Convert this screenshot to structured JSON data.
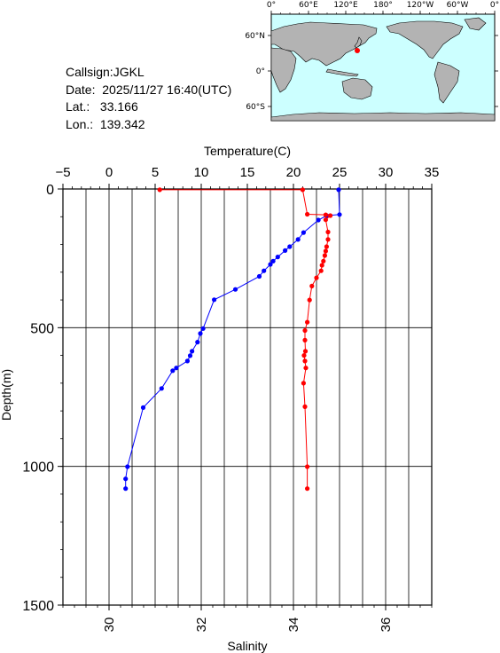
{
  "station": {
    "callsign": "Callsign:JGKL",
    "date": "Date:  2025/11/27 16:40(UTC)",
    "lat_label": "Lat.:",
    "lat": "33.166",
    "lon_label": "Lon.:",
    "lon": "139.342"
  },
  "map": {
    "lon_ticks": [
      "0°",
      "60°E",
      "120°E",
      "180°",
      "120°W",
      "60°W",
      "0°"
    ],
    "lat_ticks": [
      "60°N",
      "0°",
      "60°S"
    ],
    "colors": {
      "ocean": "#ccffff",
      "land": "#b3b3b3",
      "marker": "#ff0000"
    }
  },
  "chart_data": {
    "type": "line",
    "title": "",
    "xlabel_top": "Temperature(C)",
    "xlabel_bottom": "Salinity",
    "ylabel": "Depth(m)",
    "temperature_range": [
      -5,
      35
    ],
    "temperature_ticks": [
      -5,
      0,
      5,
      10,
      15,
      20,
      25,
      30,
      35
    ],
    "salinity_range": [
      29,
      37
    ],
    "salinity_ticks": [
      30,
      32,
      34,
      36
    ],
    "depth_range": [
      0,
      1500
    ],
    "depth_ticks": [
      0,
      500,
      1000,
      1500
    ],
    "grid": true,
    "series": [
      {
        "axis": "temperature",
        "color": "#0000ff",
        "points": [
          [
            24.9,
            3
          ],
          [
            25.0,
            92
          ],
          [
            23.6,
            96
          ],
          [
            22.7,
            112
          ],
          [
            21.1,
            157
          ],
          [
            20.5,
            182
          ],
          [
            19.6,
            208
          ],
          [
            19.1,
            222
          ],
          [
            18.3,
            245
          ],
          [
            17.8,
            260
          ],
          [
            17.5,
            272
          ],
          [
            16.8,
            295
          ],
          [
            16.3,
            315
          ],
          [
            13.7,
            362
          ],
          [
            11.4,
            399
          ],
          [
            10.2,
            503
          ],
          [
            9.9,
            521
          ],
          [
            9.6,
            552
          ],
          [
            9.0,
            585
          ],
          [
            8.8,
            601
          ],
          [
            8.5,
            620
          ],
          [
            7.3,
            645
          ],
          [
            6.9,
            655
          ],
          [
            5.7,
            719
          ],
          [
            3.7,
            788
          ],
          [
            2.0,
            1001
          ],
          [
            1.8,
            1045
          ],
          [
            1.8,
            1080
          ]
        ]
      },
      {
        "axis": "salinity",
        "color": "#ff0000",
        "points": [
          [
            31.1,
            3
          ],
          [
            34.2,
            3
          ],
          [
            34.3,
            91
          ],
          [
            34.7,
            93
          ],
          [
            34.8,
            96
          ],
          [
            34.7,
            111
          ],
          [
            34.75,
            155
          ],
          [
            34.75,
            182
          ],
          [
            34.72,
            208
          ],
          [
            34.7,
            224
          ],
          [
            34.68,
            240
          ],
          [
            34.65,
            260
          ],
          [
            34.62,
            275
          ],
          [
            34.6,
            295
          ],
          [
            34.5,
            320
          ],
          [
            34.4,
            350
          ],
          [
            34.35,
            400
          ],
          [
            34.3,
            480
          ],
          [
            34.25,
            510
          ],
          [
            34.25,
            545
          ],
          [
            34.26,
            585
          ],
          [
            34.23,
            600
          ],
          [
            34.25,
            620
          ],
          [
            34.27,
            645
          ],
          [
            34.22,
            700
          ],
          [
            34.25,
            785
          ],
          [
            34.3,
            1001
          ],
          [
            34.3,
            1080
          ]
        ]
      }
    ]
  }
}
